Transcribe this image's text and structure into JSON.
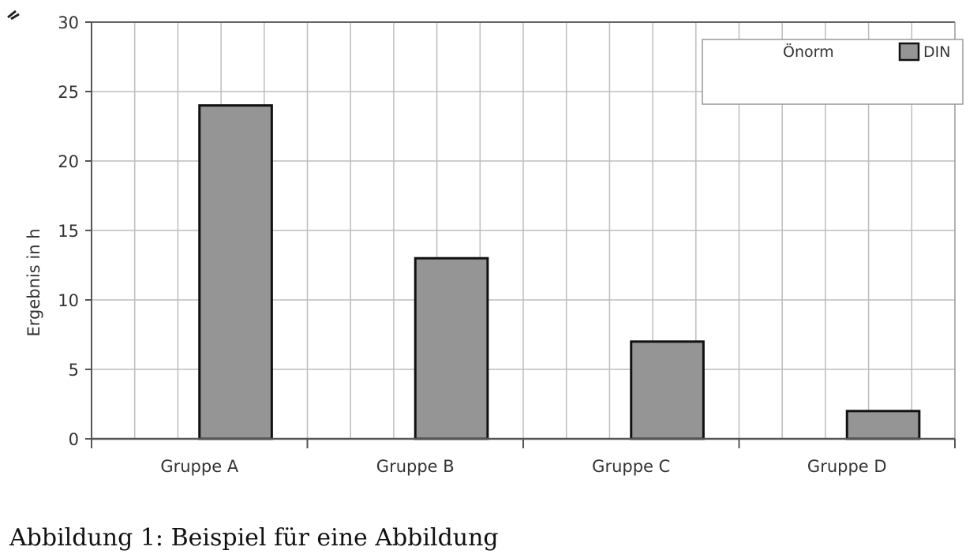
{
  "caption": "Abbildung 1: Beispiel für eine Abbildung",
  "chart_data": {
    "type": "bar",
    "categories": [
      "Gruppe A",
      "Gruppe B",
      "Gruppe C",
      "Gruppe D"
    ],
    "series": [
      {
        "name": "DIN",
        "values": [
          24,
          13,
          7,
          2
        ],
        "color": "#959595"
      }
    ],
    "legend_entries": [
      "Önorm",
      "DIN"
    ],
    "title": "",
    "xlabel": "",
    "ylabel": "Ergebnis in h",
    "ylim": [
      0,
      30
    ],
    "yticks": [
      0,
      5,
      10,
      15,
      20,
      25,
      30
    ],
    "grid": true,
    "legend_position": "top-right"
  }
}
